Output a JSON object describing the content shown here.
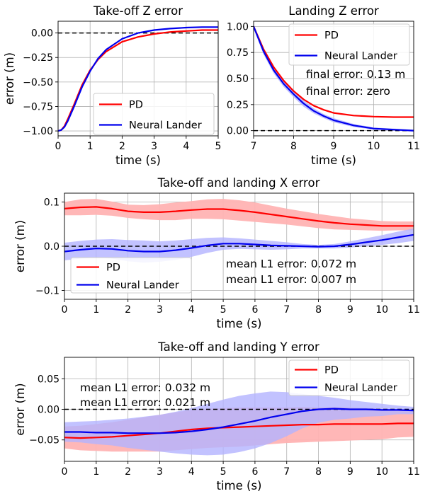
{
  "colors": {
    "pd": "#ff0000",
    "neural": "#0000ee",
    "pd_band": "#ffb3b3",
    "neural_band": "#b3b3ff"
  },
  "chart_data": [
    {
      "id": "takeoff_z",
      "type": "line",
      "title": "Take-off Z error",
      "xlabel": "time (s)",
      "ylabel": "error (m)",
      "xlim": [
        0,
        5
      ],
      "ylim": [
        -1.05,
        0.12
      ],
      "xticks": [
        "0",
        "1",
        "2",
        "3",
        "4",
        "5"
      ],
      "yticks": [
        "0.00",
        "−0.25",
        "−0.50",
        "−0.75",
        "−1.00"
      ],
      "grid": true,
      "legend": "lower-right",
      "zero_line": true,
      "series": [
        {
          "name": "PD",
          "color": "#ff0000",
          "x": [
            0,
            0.1,
            0.2,
            0.3,
            0.5,
            0.75,
            1,
            1.25,
            1.5,
            2,
            2.5,
            3,
            3.5,
            4,
            4.5,
            5
          ],
          "y": [
            -1.0,
            -0.99,
            -0.95,
            -0.88,
            -0.73,
            -0.53,
            -0.38,
            -0.27,
            -0.19,
            -0.09,
            -0.04,
            -0.01,
            0.01,
            0.02,
            0.03,
            0.03
          ]
        },
        {
          "name": "Neural Lander",
          "color": "#0000ee",
          "x": [
            0,
            0.1,
            0.2,
            0.3,
            0.5,
            0.75,
            1,
            1.25,
            1.5,
            2,
            2.5,
            3,
            3.5,
            4,
            4.5,
            5
          ],
          "y": [
            -1.0,
            -0.99,
            -0.96,
            -0.9,
            -0.75,
            -0.55,
            -0.39,
            -0.26,
            -0.17,
            -0.06,
            0.0,
            0.03,
            0.045,
            0.055,
            0.06,
            0.06
          ]
        }
      ]
    },
    {
      "id": "landing_z",
      "type": "line",
      "title": "Landing Z error",
      "xlabel": "time (s)",
      "ylabel": "",
      "xlim": [
        7,
        11
      ],
      "ylim": [
        -0.05,
        1.05
      ],
      "xticks": [
        "7",
        "8",
        "9",
        "10",
        "11"
      ],
      "yticks": [
        "1.00",
        "0.75",
        "0.50",
        "0.25",
        "0.00"
      ],
      "grid": true,
      "legend": "top-right",
      "zero_line": true,
      "annotations": [
        {
          "text": "final error: 0.13 m",
          "color": "#ff0000"
        },
        {
          "text": "final error: zero",
          "color": "#0000ee"
        }
      ],
      "series": [
        {
          "name": "PD",
          "color": "#ff0000",
          "x": [
            7,
            7.25,
            7.5,
            7.75,
            8,
            8.25,
            8.5,
            8.75,
            9,
            9.5,
            10,
            10.5,
            11
          ],
          "y": [
            1.0,
            0.78,
            0.61,
            0.48,
            0.38,
            0.3,
            0.24,
            0.2,
            0.17,
            0.145,
            0.135,
            0.13,
            0.13
          ]
        },
        {
          "name": "Neural Lander",
          "color": "#0000ee",
          "x": [
            7,
            7.25,
            7.5,
            7.75,
            8,
            8.25,
            8.5,
            8.75,
            9,
            9.5,
            10,
            10.5,
            11
          ],
          "y": [
            1.0,
            0.76,
            0.58,
            0.45,
            0.35,
            0.26,
            0.19,
            0.14,
            0.1,
            0.05,
            0.02,
            0.01,
            0.0
          ],
          "band": [
            0.02,
            0.03,
            0.03,
            0.03,
            0.03,
            0.03,
            0.025,
            0.02,
            0.02,
            0.015,
            0.01,
            0.01,
            0.01
          ]
        }
      ]
    },
    {
      "id": "xy_x",
      "type": "line",
      "title": "Take-off and landing X error",
      "xlabel": "time (s)",
      "ylabel": "error (m)",
      "xlim": [
        0,
        11
      ],
      "ylim": [
        -0.12,
        0.12
      ],
      "xticks": [
        "0",
        "1",
        "2",
        "3",
        "4",
        "5",
        "6",
        "7",
        "8",
        "9",
        "10",
        "11"
      ],
      "yticks": [
        "0.1",
        "0.0",
        "−0.1"
      ],
      "grid": true,
      "legend": "lower-left",
      "zero_line": true,
      "annotations": [
        {
          "text": "mean L1 error: 0.072 m",
          "color": "#ff0000"
        },
        {
          "text": "mean L1 error: 0.007 m",
          "color": "#0000ee"
        }
      ],
      "series": [
        {
          "name": "PD",
          "color": "#ff0000",
          "x": [
            0,
            0.5,
            1,
            1.5,
            2,
            2.5,
            3,
            3.5,
            4,
            4.5,
            5,
            5.5,
            6,
            6.5,
            7,
            7.5,
            8,
            8.5,
            9,
            9.5,
            10,
            10.5,
            11
          ],
          "y": [
            0.085,
            0.088,
            0.089,
            0.085,
            0.079,
            0.077,
            0.077,
            0.079,
            0.082,
            0.084,
            0.084,
            0.081,
            0.077,
            0.072,
            0.067,
            0.062,
            0.057,
            0.053,
            0.05,
            0.048,
            0.046,
            0.046,
            0.046
          ],
          "band": [
            0.015,
            0.018,
            0.018,
            0.016,
            0.015,
            0.016,
            0.018,
            0.02,
            0.02,
            0.022,
            0.023,
            0.023,
            0.022,
            0.02,
            0.018,
            0.017,
            0.016,
            0.015,
            0.013,
            0.012,
            0.011,
            0.01,
            0.01
          ]
        },
        {
          "name": "Neural Lander",
          "color": "#0000ee",
          "x": [
            0,
            0.5,
            1,
            1.5,
            2,
            2.5,
            3,
            3.5,
            4,
            4.5,
            5,
            5.5,
            6,
            6.5,
            7,
            7.5,
            8,
            8.5,
            9,
            9.5,
            10,
            10.5,
            11
          ],
          "y": [
            -0.012,
            -0.008,
            -0.005,
            -0.006,
            -0.01,
            -0.012,
            -0.012,
            -0.009,
            -0.004,
            0.002,
            0.006,
            0.006,
            0.004,
            0.002,
            0.001,
            0.0,
            -0.001,
            0.0,
            0.004,
            0.009,
            0.014,
            0.02,
            0.026
          ],
          "band": [
            0.02,
            0.02,
            0.02,
            0.022,
            0.024,
            0.025,
            0.023,
            0.022,
            0.02,
            0.017,
            0.014,
            0.012,
            0.011,
            0.01,
            0.008,
            0.005,
            0.004,
            0.005,
            0.007,
            0.009,
            0.011,
            0.013,
            0.014
          ]
        }
      ]
    },
    {
      "id": "xy_y",
      "type": "line",
      "title": "Take-off and landing Y error",
      "xlabel": "time (s)",
      "ylabel": "error (m)",
      "xlim": [
        0,
        11
      ],
      "ylim": [
        -0.085,
        0.085
      ],
      "xticks": [
        "0",
        "1",
        "2",
        "3",
        "4",
        "5",
        "6",
        "7",
        "8",
        "9",
        "10",
        "11"
      ],
      "yticks": [
        "0.05",
        "0.00",
        "−0.05"
      ],
      "grid": true,
      "legend": "top-right",
      "zero_line": true,
      "annotations": [
        {
          "text": "mean L1 error: 0.032 m",
          "color": "#ff0000"
        },
        {
          "text": "mean L1 error: 0.021 m",
          "color": "#0000ee"
        }
      ],
      "series": [
        {
          "name": "PD",
          "color": "#ff0000",
          "x": [
            0,
            0.5,
            1,
            1.5,
            2,
            2.5,
            3,
            3.5,
            4,
            4.5,
            5,
            5.5,
            6,
            6.5,
            7,
            7.5,
            8,
            8.5,
            9,
            9.5,
            10,
            10.5,
            11
          ],
          "y": [
            -0.046,
            -0.047,
            -0.046,
            -0.045,
            -0.043,
            -0.041,
            -0.039,
            -0.036,
            -0.033,
            -0.031,
            -0.03,
            -0.029,
            -0.028,
            -0.027,
            -0.026,
            -0.025,
            -0.025,
            -0.024,
            -0.024,
            -0.024,
            -0.024,
            -0.023,
            -0.023
          ],
          "band": [
            0.018,
            0.02,
            0.022,
            0.024,
            0.026,
            0.028,
            0.03,
            0.031,
            0.032,
            0.032,
            0.032,
            0.032,
            0.031,
            0.03,
            0.029,
            0.029,
            0.028,
            0.028,
            0.027,
            0.026,
            0.025,
            0.023,
            0.022
          ]
        },
        {
          "name": "Neural Lander",
          "color": "#0000ee",
          "x": [
            0,
            0.5,
            1,
            1.5,
            2,
            2.5,
            3,
            3.5,
            4,
            4.5,
            5,
            5.5,
            6,
            6.5,
            7,
            7.5,
            8,
            8.5,
            9,
            9.5,
            10,
            10.5,
            11
          ],
          "y": [
            -0.037,
            -0.037,
            -0.038,
            -0.038,
            -0.039,
            -0.039,
            -0.039,
            -0.038,
            -0.036,
            -0.033,
            -0.029,
            -0.024,
            -0.019,
            -0.013,
            -0.008,
            -0.003,
            0.0,
            0.001,
            0.0,
            0.0,
            -0.001,
            -0.001,
            -0.002
          ],
          "band": [
            0.016,
            0.017,
            0.019,
            0.021,
            0.024,
            0.027,
            0.03,
            0.034,
            0.038,
            0.042,
            0.045,
            0.046,
            0.045,
            0.042,
            0.036,
            0.028,
            0.022,
            0.018,
            0.015,
            0.012,
            0.01,
            0.007,
            0.006
          ]
        }
      ]
    }
  ]
}
